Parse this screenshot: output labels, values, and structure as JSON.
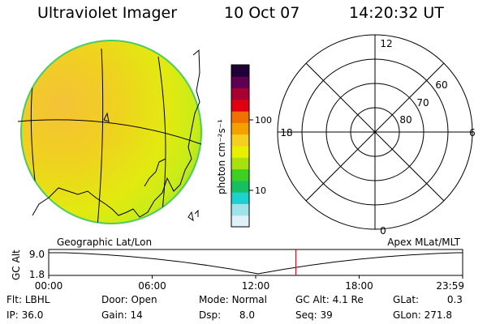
{
  "header": {
    "title": "Ultraviolet Imager",
    "date": "10 Oct 07",
    "time": "14:20:32 UT"
  },
  "colorbar": {
    "unit_label": "photon cm⁻²s⁻¹",
    "ticks": [
      {
        "label": "100",
        "value": 100
      },
      {
        "label": "10",
        "value": 10
      }
    ],
    "colors": [
      "#e0f0f8",
      "#9fe2ea",
      "#1ed0d0",
      "#16c060",
      "#3ed020",
      "#a8e010",
      "#e8f000",
      "#f6d020",
      "#f4a000",
      "#f07000",
      "#e00010",
      "#a80030",
      "#600050",
      "#200038"
    ]
  },
  "polar_plot": {
    "mlt_labels": {
      "top": "12",
      "left": "18",
      "right": "6",
      "bottom": "0"
    },
    "lat_labels": [
      "60",
      "70",
      "80"
    ]
  },
  "timeline": {
    "left_label": "Geographic Lat/Lon",
    "right_label": "Apex MLat/MLT",
    "y_axis_label": "GC Alt",
    "y_ticks": [
      "9.0",
      "1.8"
    ],
    "x_ticks": [
      "00:00",
      "06:00",
      "12:00",
      "18:00",
      "23:59"
    ],
    "current_time_fraction": 0.597
  },
  "status": {
    "row1": [
      {
        "key": "Flt:",
        "value": "LBHL"
      },
      {
        "key": "Door:",
        "value": "Open"
      },
      {
        "key": "Mode:",
        "value": "Normal"
      },
      {
        "key": "GC Alt:",
        "value": "4.1 Re"
      },
      {
        "key": "GLat:",
        "value": "0.3"
      }
    ],
    "row2": [
      {
        "key": "IP:",
        "value": "36.0"
      },
      {
        "key": "Gain:",
        "value": "14"
      },
      {
        "key": "Dsp:",
        "value": "8.0"
      },
      {
        "key": "Seq:",
        "value": "39"
      },
      {
        "key": "GLon:",
        "value": "271.8"
      }
    ]
  }
}
